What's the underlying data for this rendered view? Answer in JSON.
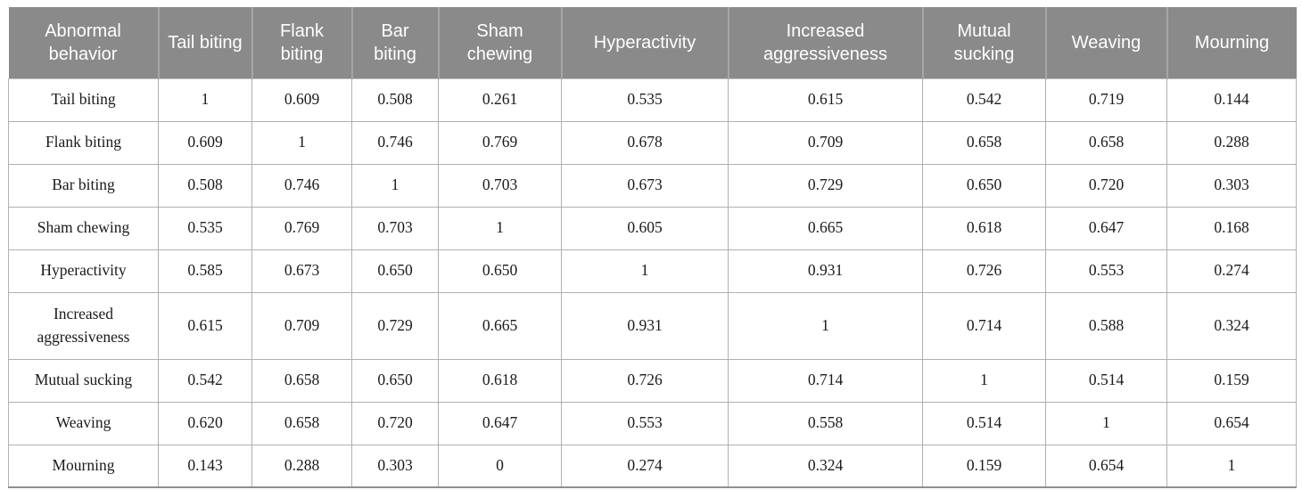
{
  "colors": {
    "header_bg": "#8a8a8a",
    "header_text": "#ffffff",
    "grid_line": "#b0b0b0",
    "bottom_rule": "#8f8f8f",
    "body_text": "#1a1a1a"
  },
  "table": {
    "header": [
      "Abnormal behavior",
      "Tail biting",
      "Flank biting",
      "Bar biting",
      "Sham chewing",
      "Hyperactivity",
      "Increased aggressiveness",
      "Mutual sucking",
      "Weaving",
      "Mourning"
    ],
    "rows": [
      {
        "label": "Tail biting",
        "values": [
          "1",
          "0.609",
          "0.508",
          "0.261",
          "0.535",
          "0.615",
          "0.542",
          "0.719",
          "0.144"
        ]
      },
      {
        "label": "Flank biting",
        "values": [
          "0.609",
          "1",
          "0.746",
          "0.769",
          "0.678",
          "0.709",
          "0.658",
          "0.658",
          "0.288"
        ]
      },
      {
        "label": "Bar biting",
        "values": [
          "0.508",
          "0.746",
          "1",
          "0.703",
          "0.673",
          "0.729",
          "0.650",
          "0.720",
          "0.303"
        ]
      },
      {
        "label": "Sham chewing",
        "values": [
          "0.535",
          "0.769",
          "0.703",
          "1",
          "0.605",
          "0.665",
          "0.618",
          "0.647",
          "0.168"
        ]
      },
      {
        "label": "Hyperactivity",
        "values": [
          "0.585",
          "0.673",
          "0.650",
          "0.650",
          "1",
          "0.931",
          "0.726",
          "0.553",
          "0.274"
        ]
      },
      {
        "label": "Increased aggressiveness",
        "values": [
          "0.615",
          "0.709",
          "0.729",
          "0.665",
          "0.931",
          "1",
          "0.714",
          "0.588",
          "0.324"
        ]
      },
      {
        "label": "Mutual sucking",
        "values": [
          "0.542",
          "0.658",
          "0.650",
          "0.618",
          "0.726",
          "0.714",
          "1",
          "0.514",
          "0.159"
        ]
      },
      {
        "label": "Weaving",
        "values": [
          "0.620",
          "0.658",
          "0.720",
          "0.647",
          "0.553",
          "0.558",
          "0.514",
          "1",
          "0.654"
        ]
      },
      {
        "label": "Mourning",
        "values": [
          "0.143",
          "0.288",
          "0.303",
          "0",
          "0.274",
          "0.324",
          "0.159",
          "0.654",
          "1"
        ]
      }
    ]
  },
  "chart_data": {
    "type": "table",
    "title": "",
    "columns": [
      "Abnormal behavior",
      "Tail biting",
      "Flank biting",
      "Bar biting",
      "Sham chewing",
      "Hyperactivity",
      "Increased aggressiveness",
      "Mutual sucking",
      "Weaving",
      "Mourning"
    ],
    "row_labels": [
      "Tail biting",
      "Flank biting",
      "Bar biting",
      "Sham chewing",
      "Hyperactivity",
      "Increased aggressiveness",
      "Mutual sucking",
      "Weaving",
      "Mourning"
    ],
    "values": [
      [
        1,
        0.609,
        0.508,
        0.261,
        0.535,
        0.615,
        0.542,
        0.719,
        0.144
      ],
      [
        0.609,
        1,
        0.746,
        0.769,
        0.678,
        0.709,
        0.658,
        0.658,
        0.288
      ],
      [
        0.508,
        0.746,
        1,
        0.703,
        0.673,
        0.729,
        0.65,
        0.72,
        0.303
      ],
      [
        0.535,
        0.769,
        0.703,
        1,
        0.605,
        0.665,
        0.618,
        0.647,
        0.168
      ],
      [
        0.585,
        0.673,
        0.65,
        0.65,
        1,
        0.931,
        0.726,
        0.553,
        0.274
      ],
      [
        0.615,
        0.709,
        0.729,
        0.665,
        0.931,
        1,
        0.714,
        0.588,
        0.324
      ],
      [
        0.542,
        0.658,
        0.65,
        0.618,
        0.726,
        0.714,
        1,
        0.514,
        0.159
      ],
      [
        0.62,
        0.658,
        0.72,
        0.647,
        0.553,
        0.558,
        0.514,
        1,
        0.654
      ],
      [
        0.143,
        0.288,
        0.303,
        0,
        0.274,
        0.324,
        0.159,
        0.654,
        1
      ]
    ]
  }
}
